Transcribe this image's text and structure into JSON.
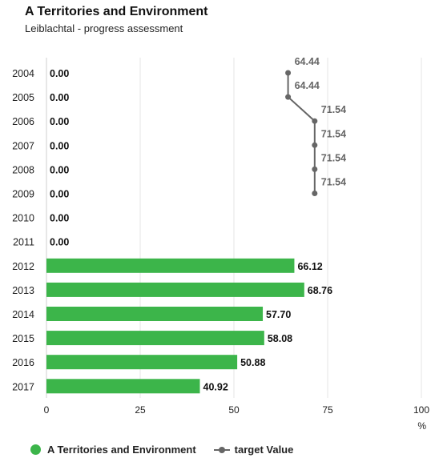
{
  "header": {
    "title": "A Territories and Environment",
    "subtitle": "Leiblachtal - progress assessment"
  },
  "chart_data": {
    "type": "bar",
    "orientation": "horizontal",
    "categories": [
      "2004",
      "2005",
      "2006",
      "2007",
      "2008",
      "2009",
      "2010",
      "2011",
      "2012",
      "2013",
      "2014",
      "2015",
      "2016",
      "2017"
    ],
    "series": [
      {
        "name": "A Territories and Environment",
        "type": "bar",
        "color": "#3cb54a",
        "values": [
          0.0,
          0.0,
          0.0,
          0.0,
          0.0,
          0.0,
          0.0,
          0.0,
          66.12,
          68.76,
          57.7,
          58.08,
          50.88,
          40.92
        ],
        "labels": [
          "0.00",
          "0.00",
          "0.00",
          "0.00",
          "0.00",
          "0.00",
          "0.00",
          "0.00",
          "66.12",
          "68.76",
          "57.70",
          "58.08",
          "50.88",
          "40.92"
        ]
      },
      {
        "name": "target Value",
        "type": "line",
        "color": "#666666",
        "values": [
          64.44,
          64.44,
          71.54,
          71.54,
          71.54,
          71.54,
          null,
          null,
          null,
          null,
          null,
          null,
          null,
          null
        ],
        "labels": [
          "64.44",
          "64.44",
          "71.54",
          "71.54",
          "71.54",
          "71.54",
          null,
          null,
          null,
          null,
          null,
          null,
          null,
          null
        ]
      }
    ],
    "value_axis": {
      "range": [
        0,
        100
      ],
      "ticks": [
        0,
        25,
        50,
        75,
        100
      ],
      "tick_labels": [
        "0",
        "25",
        "50",
        "75",
        "100"
      ],
      "unit": "%"
    },
    "grid": true,
    "legend_position": "bottom-left"
  }
}
